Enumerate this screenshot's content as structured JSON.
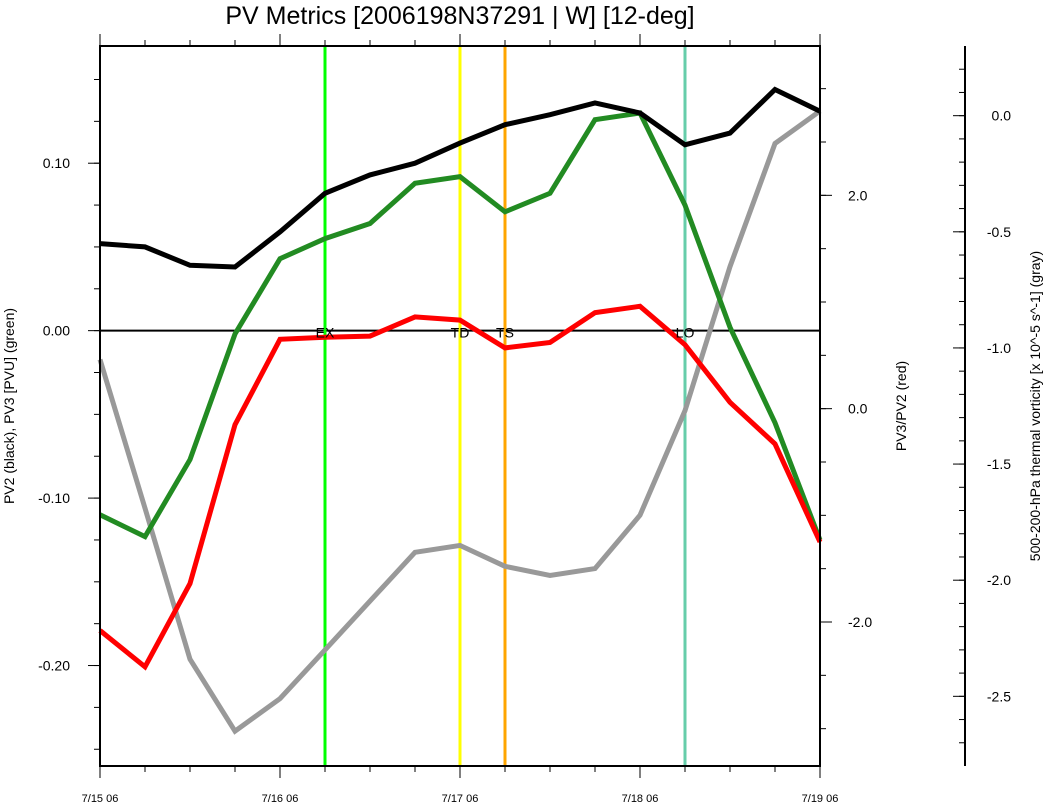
{
  "chart_data": {
    "type": "line",
    "title": "PV Metrics [2006198N37291 | W] [12-deg]",
    "x_tick_labels": [
      "7/15 06",
      "7/16 06",
      "7/17 06",
      "7/18 06",
      "7/19 06"
    ],
    "x_range_days": [
      0,
      4
    ],
    "grid": false,
    "axes": {
      "left": {
        "label": "PV2 (black), PV3 [PVU] (green)",
        "ylim": [
          -0.26,
          0.17
        ],
        "ticks": [
          -0.2,
          -0.1,
          0.0,
          0.1
        ],
        "tick_labels": [
          "-0.20",
          "-0.10",
          "0.00",
          "0.10"
        ]
      },
      "right": {
        "label": "PV3/PV2 (red)",
        "ylim": [
          -3.35,
          3.4
        ],
        "ticks": [
          -2.0,
          0.0,
          2.0
        ],
        "tick_labels": [
          "-2.0",
          "0.0",
          "2.0"
        ]
      },
      "far_right": {
        "label": "500-200-hPa thermal vorticity [x 10^-5 s^-1] (gray)",
        "ylim": [
          -2.8,
          0.3
        ],
        "ticks": [
          -2.5,
          -2.0,
          -1.5,
          -1.0,
          -0.5,
          0.0
        ],
        "tick_labels": [
          "-2.5",
          "-2.0",
          "-1.5",
          "-1.0",
          "-0.5",
          "0.0"
        ]
      }
    },
    "x": [
      0,
      0.25,
      0.5,
      0.75,
      1.0,
      1.25,
      1.5,
      1.75,
      2.0,
      2.25,
      2.5,
      2.75,
      3.0,
      3.25,
      3.5,
      3.75,
      4.0
    ],
    "series": [
      {
        "axis": "left",
        "color": "#000000",
        "values": [
          0.052,
          0.05,
          0.039,
          0.038,
          0.059,
          0.082,
          0.093,
          0.1,
          0.112,
          0.123,
          0.129,
          0.136,
          0.13,
          0.111,
          0.118,
          0.144,
          0.131
        ]
      },
      {
        "axis": "left",
        "color": "#228b22",
        "values": [
          -0.11,
          -0.123,
          -0.077,
          -0.002,
          0.043,
          0.055,
          0.064,
          0.088,
          0.092,
          0.071,
          0.082,
          0.126,
          0.13,
          0.075,
          0.002,
          -0.055,
          -0.125
        ]
      },
      {
        "axis": "right",
        "color": "#ff0000",
        "values": [
          -2.08,
          -2.42,
          -1.64,
          -0.15,
          0.65,
          0.67,
          0.68,
          0.86,
          0.83,
          0.57,
          0.62,
          0.9,
          0.96,
          0.6,
          0.06,
          -0.33,
          -1.25
        ]
      },
      {
        "axis": "far_right",
        "color": "#999999",
        "values": [
          -1.05,
          -1.69,
          -2.34,
          -2.65,
          -2.51,
          -2.3,
          -2.09,
          -1.88,
          -1.85,
          -1.94,
          -1.98,
          -1.95,
          -1.72,
          -1.27,
          -0.65,
          -0.12,
          0.02
        ]
      }
    ],
    "zero_line": {
      "axis": "left",
      "value": 0.0,
      "color": "#000000"
    },
    "events": [
      {
        "label": "EX",
        "x": 1.25,
        "color": "#00ff00"
      },
      {
        "label": "TD",
        "x": 2.0,
        "color": "#ffff00"
      },
      {
        "label": "TS",
        "x": 2.25,
        "color": "#ffa500"
      },
      {
        "label": "LO",
        "x": 3.25,
        "color": "#66cdaa"
      }
    ]
  }
}
